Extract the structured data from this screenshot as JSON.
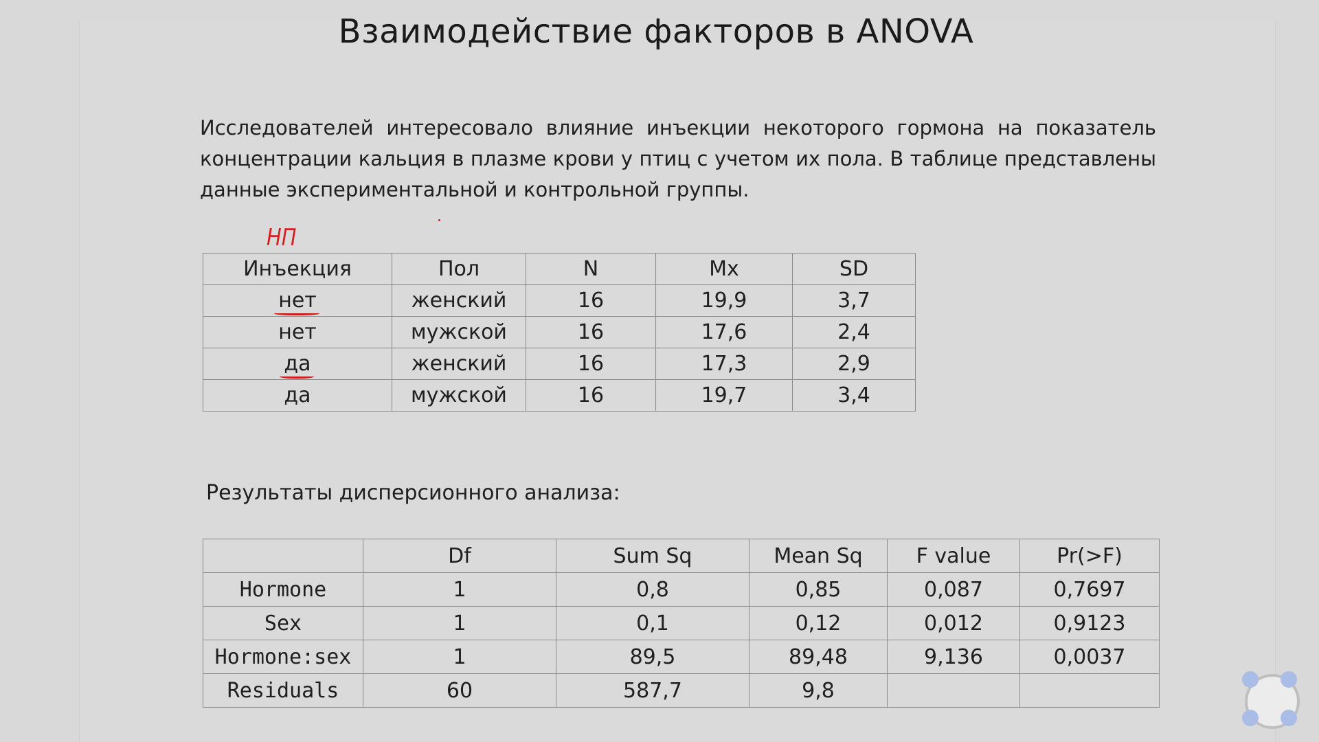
{
  "slide": {
    "title": "Взаимодействие факторов в ANOVA",
    "intro": "Исследователей интересовало влияние инъекции некоторого гормона на показатель концентрации кальция в плазме крови у птиц с учетом их пола.  В таблице представлены данные экспериментальной и контрольной группы.",
    "handwritten_note": "НП",
    "results_caption": "Результаты дисперсионного анализа:"
  },
  "descriptives": {
    "headers": [
      "Инъекция",
      "Пол",
      "N",
      "Mx",
      "SD"
    ],
    "rows": [
      [
        "нет",
        "женский",
        "16",
        "19,9",
        "3,7"
      ],
      [
        "нет",
        "мужской",
        "16",
        "17,6",
        "2,4"
      ],
      [
        "да",
        "женский",
        "16",
        "17,3",
        "2,9"
      ],
      [
        "да",
        "мужской",
        "16",
        "19,7",
        "3,4"
      ]
    ]
  },
  "anova": {
    "headers": [
      "",
      "Df",
      "Sum Sq",
      "Mean Sq",
      "F value",
      "Pr(>F)"
    ],
    "rows": [
      [
        "Hormone",
        "1",
        "0,8",
        "0,85",
        "0,087",
        "0,7697"
      ],
      [
        "Sex",
        "1",
        "0,1",
        "0,12",
        "0,012",
        "0,9123"
      ],
      [
        "Hormone:sex",
        "1",
        "89,5",
        "89,48",
        "9,136",
        "0,0037"
      ],
      [
        "Residuals",
        "60",
        "587,7",
        "9,8",
        "",
        ""
      ]
    ]
  },
  "colors": {
    "annotation": "#d42020",
    "nav_dots": "#a9bde6"
  },
  "icons": {
    "navigator": "slide-navigator-icon"
  }
}
